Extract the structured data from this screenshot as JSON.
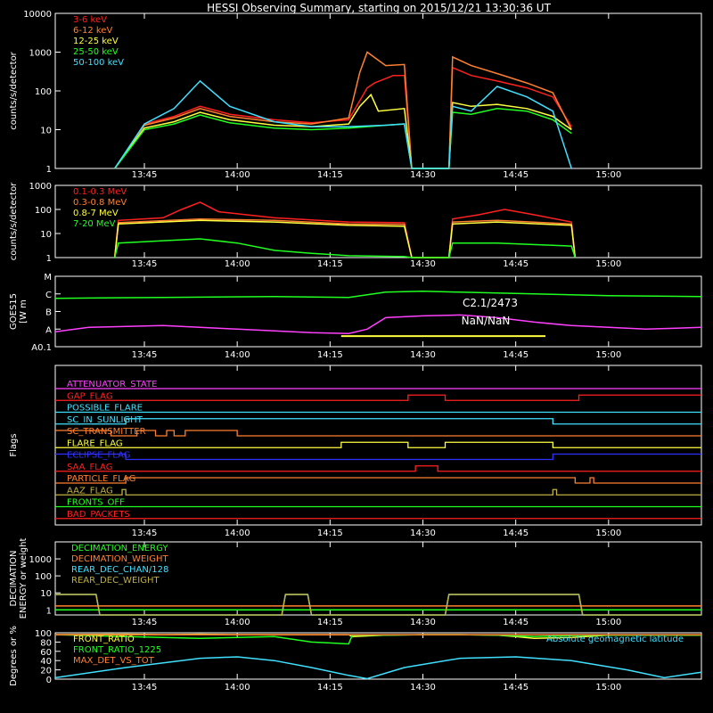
{
  "title": "HESSI Observing Summary, starting on 2015/12/21 13:30:36 UT",
  "colors": {
    "bg": "#000000",
    "axis": "#ffffff",
    "red": "#ff2020",
    "orange": "#ff8030",
    "yellow": "#ffff40",
    "green": "#20ff20",
    "cyan": "#40e0ff",
    "magenta": "#ff40ff",
    "blue": "#3030ff",
    "olive": "#c0b040",
    "salmon": "#ff6060"
  },
  "chart_data": [
    {
      "id": "p1",
      "type": "line",
      "ylabel": "counts/s/detector",
      "yscale": "log",
      "ylim": [
        1,
        10000
      ],
      "yticks": [
        "1",
        "10",
        "100",
        "1000",
        "10000"
      ],
      "xlim": [
        13.51,
        15.25
      ],
      "xticks": [
        "13:45",
        "14:00",
        "14:15",
        "14:30",
        "14:45",
        "15:00"
      ],
      "series": [
        {
          "name": "3-6 keV",
          "color": "#ff2020",
          "x": [
            13.67,
            13.75,
            13.83,
            13.9,
            13.98,
            14.1,
            14.2,
            14.3,
            14.35,
            14.37,
            14.42,
            14.45,
            14.47,
            14.57,
            14.58,
            14.63,
            14.7,
            14.78,
            14.85,
            14.9
          ],
          "y": [
            1,
            14,
            22,
            40,
            25,
            18,
            15,
            18,
            120,
            160,
            250,
            250,
            1,
            1,
            400,
            250,
            180,
            120,
            70,
            12
          ]
        },
        {
          "name": "6-12 keV",
          "color": "#ff8030",
          "x": [
            13.67,
            13.75,
            13.83,
            13.9,
            13.98,
            14.1,
            14.2,
            14.3,
            14.33,
            14.35,
            14.4,
            14.45,
            14.47,
            14.57,
            14.58,
            14.63,
            14.7,
            14.78,
            14.85,
            14.9
          ],
          "y": [
            1,
            13,
            20,
            35,
            22,
            16,
            14,
            20,
            300,
            1000,
            450,
            480,
            1,
            1,
            750,
            450,
            280,
            160,
            90,
            10
          ]
        },
        {
          "name": "12-25 keV",
          "color": "#ffff40",
          "x": [
            13.67,
            13.75,
            13.83,
            13.9,
            13.98,
            14.1,
            14.2,
            14.3,
            14.33,
            14.36,
            14.38,
            14.45,
            14.47,
            14.57,
            14.58,
            14.63,
            14.7,
            14.78,
            14.85,
            14.9
          ],
          "y": [
            1,
            11,
            16,
            28,
            18,
            13,
            12,
            14,
            40,
            80,
            30,
            35,
            1,
            1,
            50,
            40,
            45,
            35,
            22,
            10
          ]
        },
        {
          "name": "25-50 keV",
          "color": "#20ff20",
          "x": [
            13.67,
            13.75,
            13.83,
            13.9,
            13.98,
            14.1,
            14.2,
            14.3,
            14.4,
            14.45,
            14.47,
            14.57,
            14.58,
            14.63,
            14.7,
            14.78,
            14.85,
            14.9
          ],
          "y": [
            1,
            10,
            14,
            24,
            15,
            11,
            10,
            11,
            13,
            14,
            1,
            1,
            28,
            25,
            35,
            30,
            18,
            8
          ]
        },
        {
          "name": "50-100 keV",
          "color": "#40e0ff",
          "x": [
            13.67,
            13.75,
            13.83,
            13.9,
            13.98,
            14.1,
            14.2,
            14.3,
            14.4,
            14.45,
            14.47,
            14.57,
            14.58,
            14.63,
            14.7,
            14.78,
            14.85,
            14.9
          ],
          "y": [
            1,
            14,
            35,
            180,
            40,
            16,
            12,
            12,
            13,
            14,
            1,
            1,
            40,
            30,
            130,
            70,
            30,
            1
          ]
        }
      ]
    },
    {
      "id": "p2",
      "type": "line",
      "ylabel": "counts/s/detector",
      "yscale": "log",
      "ylim": [
        1,
        1000
      ],
      "yticks": [
        "1",
        "10",
        "100",
        "1000"
      ],
      "xlim": [
        13.51,
        15.25
      ],
      "xticks": [
        "13:45",
        "14:00",
        "14:15",
        "14:30",
        "14:45",
        "15:00"
      ],
      "series": [
        {
          "name": "0.1-0.3 MeV",
          "color": "#ff2020",
          "x": [
            13.67,
            13.68,
            13.8,
            13.85,
            13.9,
            13.95,
            14.1,
            14.3,
            14.45,
            14.47,
            14.57,
            14.58,
            14.65,
            14.72,
            14.8,
            14.9,
            14.91
          ],
          "y": [
            1,
            35,
            45,
            100,
            200,
            80,
            45,
            30,
            28,
            1,
            1,
            40,
            60,
            100,
            60,
            30,
            1
          ]
        },
        {
          "name": "0.3-0.8 MeV",
          "color": "#ff8030",
          "x": [
            13.67,
            13.68,
            13.9,
            14.1,
            14.3,
            14.45,
            14.47,
            14.57,
            14.58,
            14.7,
            14.9,
            14.91
          ],
          "y": [
            1,
            28,
            40,
            35,
            25,
            24,
            1,
            1,
            30,
            35,
            25,
            1
          ]
        },
        {
          "name": "0.8-7 MeV",
          "color": "#ffff40",
          "x": [
            13.67,
            13.68,
            13.9,
            14.1,
            14.3,
            14.45,
            14.47,
            14.57,
            14.58,
            14.7,
            14.9,
            14.91
          ],
          "y": [
            1,
            25,
            35,
            30,
            22,
            20,
            1,
            1,
            25,
            30,
            22,
            1
          ]
        },
        {
          "name": "7-20 MeV",
          "color": "#20ff20",
          "x": [
            13.67,
            13.68,
            13.8,
            13.9,
            14.0,
            14.1,
            14.2,
            14.3,
            14.45,
            14.47,
            14.57,
            14.58,
            14.7,
            14.9,
            14.91
          ],
          "y": [
            1,
            4,
            5,
            6,
            4,
            2,
            1.5,
            1.2,
            1.1,
            1,
            1,
            4,
            4,
            3,
            1
          ]
        }
      ]
    },
    {
      "id": "p3",
      "type": "line",
      "ylabel": "GOES15",
      "ylabel2": "[W m",
      "ylim": [
        0,
        4
      ],
      "yticks": [
        "A0.1",
        "A",
        "B",
        "C",
        "M"
      ],
      "xlim": [
        13.51,
        15.25
      ],
      "xticks": [
        "13:45",
        "14:00",
        "14:15",
        "14:30",
        "14:45",
        "15:00"
      ],
      "annotation1": "C2.1/2473",
      "annotation2": "NaN/NaN",
      "bar_x": [
        14.28,
        14.83
      ],
      "bar_y": 0.6,
      "series": [
        {
          "name": "GOES low",
          "color": "#20ff20",
          "x": [
            13.51,
            13.8,
            14.1,
            14.3,
            14.35,
            14.4,
            14.5,
            14.6,
            14.7,
            14.8,
            15.0,
            15.25
          ],
          "y": [
            2.75,
            2.8,
            2.85,
            2.8,
            2.95,
            3.1,
            3.15,
            3.1,
            3.05,
            3.0,
            2.9,
            2.85
          ]
        },
        {
          "name": "GOES high",
          "color": "#ff40ff",
          "x": [
            13.51,
            13.6,
            13.8,
            14.0,
            14.2,
            14.3,
            14.35,
            14.4,
            14.5,
            14.6,
            14.7,
            14.8,
            14.9,
            15.0,
            15.1,
            15.25
          ],
          "y": [
            0.85,
            1.1,
            1.2,
            1.0,
            0.8,
            0.75,
            1.0,
            1.65,
            1.75,
            1.8,
            1.65,
            1.4,
            1.2,
            1.1,
            1.0,
            1.1
          ]
        }
      ]
    },
    {
      "id": "p4",
      "type": "line",
      "ylabel": "Flags",
      "xlim": [
        13.51,
        15.25
      ],
      "xticks": [
        "13:45",
        "14:00",
        "14:15",
        "14:30",
        "14:45",
        "15:00"
      ],
      "flags": [
        {
          "name": "ATTENUATOR_STATE",
          "color": "#ff40ff",
          "steps": [
            [
              13.51,
              0
            ],
            [
              15.25,
              0
            ]
          ]
        },
        {
          "name": "GAP_FLAG",
          "color": "#ff2020",
          "steps": [
            [
              13.51,
              0
            ],
            [
              14.46,
              1
            ],
            [
              14.56,
              0
            ],
            [
              14.92,
              1
            ],
            [
              15.25,
              1
            ]
          ]
        },
        {
          "name": "POSSIBLE_FLARE",
          "color": "#40e0ff",
          "steps": [
            [
              13.51,
              0
            ],
            [
              15.25,
              0
            ]
          ]
        },
        {
          "name": "SC_IN_SUNLIGHT",
          "color": "#40e0ff",
          "steps": [
            [
              13.51,
              0
            ],
            [
              13.7,
              1
            ],
            [
              14.85,
              0
            ],
            [
              15.25,
              0
            ]
          ]
        },
        {
          "name": "SC_TRANSMITTER",
          "color": "#ff8030",
          "steps": [
            [
              13.51,
              1
            ],
            [
              13.66,
              0
            ],
            [
              13.73,
              1
            ],
            [
              13.78,
              0
            ],
            [
              13.81,
              1
            ],
            [
              13.83,
              0
            ],
            [
              13.86,
              1
            ],
            [
              14.0,
              0
            ],
            [
              15.25,
              0
            ]
          ]
        },
        {
          "name": "FLARE_FLAG",
          "color": "#ffff40",
          "steps": [
            [
              13.51,
              0
            ],
            [
              14.28,
              1
            ],
            [
              14.46,
              0
            ],
            [
              14.56,
              1
            ],
            [
              14.85,
              0
            ],
            [
              15.25,
              0
            ]
          ]
        },
        {
          "name": "ECLIPSE_FLAG",
          "color": "#3030ff",
          "steps": [
            [
              13.51,
              1
            ],
            [
              13.7,
              0
            ],
            [
              14.85,
              1
            ],
            [
              15.25,
              1
            ]
          ]
        },
        {
          "name": "SAA_FLAG",
          "color": "#ff2020",
          "steps": [
            [
              13.51,
              0
            ],
            [
              14.48,
              1
            ],
            [
              14.54,
              0
            ],
            [
              15.25,
              0
            ]
          ]
        },
        {
          "name": "PARTICLE_FLAG",
          "color": "#ff8030",
          "steps": [
            [
              13.51,
              0
            ],
            [
              13.7,
              1
            ],
            [
              14.91,
              0
            ],
            [
              14.95,
              1
            ],
            [
              14.96,
              0
            ],
            [
              15.25,
              0
            ]
          ]
        },
        {
          "name": "AAZ_FLAG",
          "color": "#c0b040",
          "steps": [
            [
              13.51,
              0
            ],
            [
              13.69,
              1
            ],
            [
              13.7,
              0
            ],
            [
              14.85,
              1
            ],
            [
              14.86,
              0
            ],
            [
              15.25,
              0
            ]
          ]
        },
        {
          "name": "FRONTS_OFF",
          "color": "#20ff20",
          "steps": [
            [
              13.51,
              0
            ],
            [
              15.25,
              0
            ]
          ]
        },
        {
          "name": "BAD_PACKETS",
          "color": "#ff2020",
          "steps": [
            [
              13.51,
              0
            ],
            [
              15.25,
              0
            ]
          ]
        }
      ]
    },
    {
      "id": "p5",
      "type": "line",
      "ylabel": "DECIMATION",
      "ylabel2": "ENERGY or weight",
      "yscale": "log",
      "ylim": [
        0.5,
        10000
      ],
      "yticks": [
        "1",
        "10",
        "100",
        "1000"
      ],
      "xlim": [
        13.51,
        15.25
      ],
      "xticks": [
        "13:45",
        "14:00",
        "14:15",
        "14:30",
        "14:45",
        "15:00"
      ],
      "series": [
        {
          "name": "DECIMATION_ENERGY",
          "color": "#20ff20",
          "x": [
            13.51,
            15.25
          ],
          "y": [
            1,
            1
          ]
        },
        {
          "name": "DECIMATION_WEIGHT",
          "color": "#ff8030",
          "x": [
            13.51,
            15.25
          ],
          "y": [
            1.7,
            1.7
          ]
        },
        {
          "name": "REAR_DEC_CHAN/128",
          "color": "#40e0ff",
          "x": [
            13.51,
            13.62,
            13.63,
            14.12,
            14.13,
            14.19,
            14.2,
            14.56,
            14.57,
            14.92,
            14.93,
            15.25
          ],
          "y": [
            8,
            8,
            0.5,
            0.5,
            8,
            8,
            0.5,
            0.5,
            8,
            8,
            0.5,
            0.5
          ]
        },
        {
          "name": "REAR_DEC_WEIGHT",
          "color": "#c0b040",
          "x": [
            13.51,
            13.62,
            13.63,
            14.12,
            14.13,
            14.19,
            14.2,
            14.56,
            14.57,
            14.92,
            14.93,
            15.25
          ],
          "y": [
            8,
            8,
            0.5,
            0.5,
            8,
            8,
            0.5,
            0.5,
            8,
            8,
            0.5,
            0.5
          ]
        }
      ]
    },
    {
      "id": "p6",
      "type": "line",
      "ylabel": "Degrees or %",
      "ylim": [
        0,
        100
      ],
      "yticks": [
        "0",
        "20",
        "40",
        "60",
        "80",
        "100"
      ],
      "xlim": [
        13.51,
        15.25
      ],
      "xticks": [
        "13:45",
        "14:00",
        "14:15",
        "14:30",
        "14:45",
        "15:00"
      ],
      "side_label": "Absolute geomagnetic latitude",
      "series": [
        {
          "name": "FRONT_RATIO",
          "color": "#ffff40",
          "x": [
            13.51,
            13.7,
            13.8,
            13.9,
            14.0,
            14.1,
            14.2,
            14.3,
            14.31,
            14.4,
            14.5,
            14.6,
            14.7,
            14.75,
            14.8,
            14.9,
            15.0,
            15.25
          ],
          "y": [
            96,
            97,
            96,
            97,
            96,
            96,
            96,
            96,
            92,
            95,
            96,
            96,
            95,
            92,
            88,
            90,
            95,
            95
          ]
        },
        {
          "name": "FRONT_RATIO_1225",
          "color": "#20ff20",
          "x": [
            13.51,
            13.7,
            13.8,
            13.9,
            14.0,
            14.1,
            14.2,
            14.25,
            14.3,
            14.31,
            14.4,
            14.5,
            14.6,
            14.7,
            14.8,
            14.9,
            15.0,
            15.25
          ],
          "y": [
            96,
            92,
            90,
            88,
            90,
            92,
            80,
            78,
            76,
            95,
            95,
            96,
            96,
            95,
            92,
            94,
            95,
            95
          ]
        },
        {
          "name": "MAX_DET_VS_TOT",
          "color": "#ff8030",
          "x": [
            13.51,
            15.25
          ],
          "y": [
            96,
            96
          ]
        },
        {
          "name": "Absolute geomagnetic latitude",
          "color": "#40e0ff",
          "x": [
            13.51,
            13.7,
            13.9,
            14.0,
            14.1,
            14.2,
            14.3,
            14.35,
            14.45,
            14.6,
            14.75,
            14.9,
            15.05,
            15.15,
            15.25
          ],
          "y": [
            3,
            25,
            45,
            48,
            40,
            25,
            8,
            1,
            25,
            45,
            48,
            40,
            20,
            3,
            15
          ]
        }
      ]
    }
  ]
}
